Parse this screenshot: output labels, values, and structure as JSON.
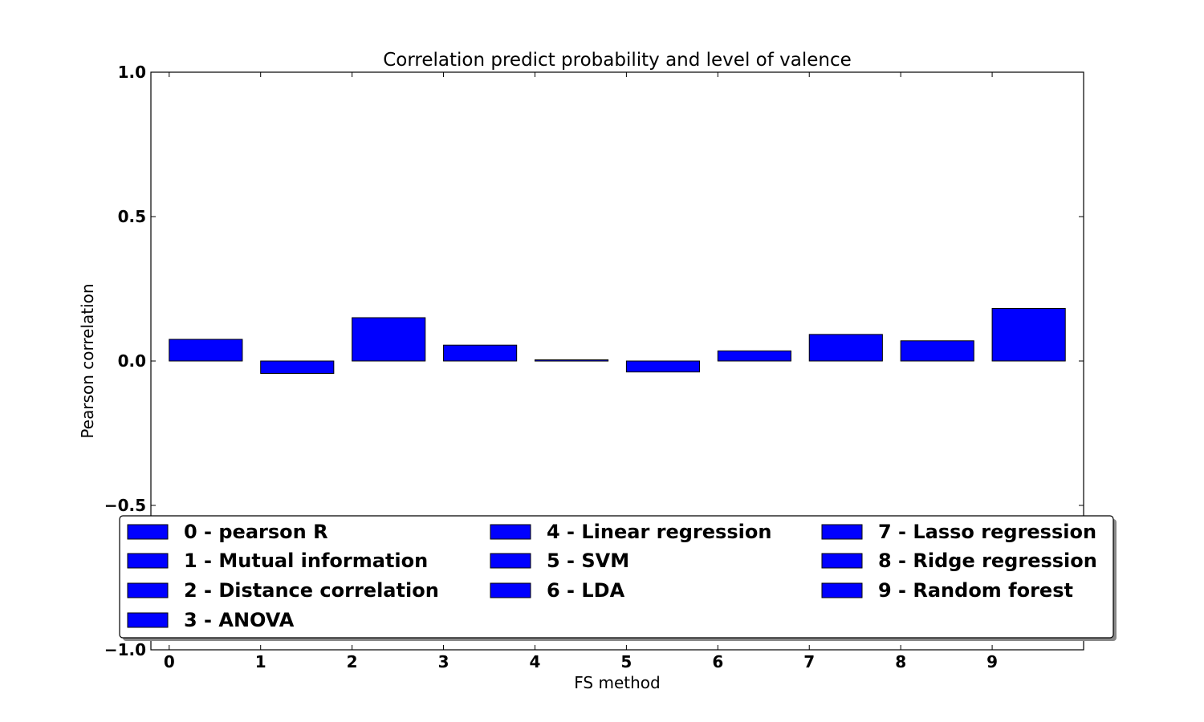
{
  "chart_data": {
    "type": "bar",
    "title": "Correlation predict probability and level of valence",
    "xlabel": "FS method",
    "ylabel": "Pearson correlation",
    "ylim": [
      -1.0,
      1.0
    ],
    "xlim": [
      -0.2,
      10.0
    ],
    "bar_width": 0.8,
    "grid": false,
    "legend_position": "bottom-center",
    "x_ticks": [
      "0",
      "1",
      "2",
      "3",
      "4",
      "5",
      "6",
      "7",
      "8",
      "9"
    ],
    "y_ticks": [
      {
        "value": 1.0,
        "label": "1.0"
      },
      {
        "value": 0.5,
        "label": "0.5"
      },
      {
        "value": 0.0,
        "label": "0.0"
      },
      {
        "value": -0.5,
        "label": "−0.5"
      },
      {
        "value": -1.0,
        "label": "−1.0"
      }
    ],
    "series": [
      {
        "name": "0 - pearson R",
        "x": 0,
        "value": 0.075
      },
      {
        "name": "1 - Mutual information",
        "x": 1,
        "value": -0.043
      },
      {
        "name": "2 - Distance correlation",
        "x": 2,
        "value": 0.15
      },
      {
        "name": "3 - ANOVA",
        "x": 3,
        "value": 0.055
      },
      {
        "name": "4 - Linear regression",
        "x": 4,
        "value": 0.004
      },
      {
        "name": "5 - SVM",
        "x": 5,
        "value": -0.038
      },
      {
        "name": "6 - LDA",
        "x": 6,
        "value": 0.035
      },
      {
        "name": "7 - Lasso regression",
        "x": 7,
        "value": 0.092
      },
      {
        "name": "8 - Ridge regression",
        "x": 8,
        "value": 0.07
      },
      {
        "name": "9 - Random forest",
        "x": 9,
        "value": 0.182
      }
    ],
    "bar_color": "#0000ff",
    "edge_color": "#000000"
  }
}
